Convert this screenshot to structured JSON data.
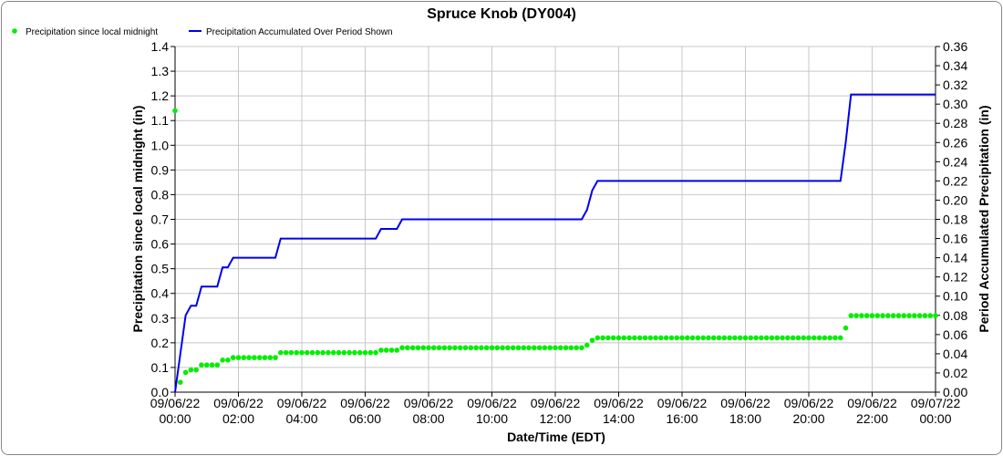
{
  "chart_data": {
    "type": "line",
    "title": "Spruce Knob (DY004)",
    "xlabel": "Date/Time (EDT)",
    "ylabel_left": "Precipitation since local midnight (in)",
    "ylabel_right": "Period Accumulated Precipitation (in)",
    "ylim_left": [
      0,
      1.4
    ],
    "yticks_left": [
      "0.0",
      "0.1",
      "0.2",
      "0.3",
      "0.4",
      "0.5",
      "0.6",
      "0.7",
      "0.8",
      "0.9",
      "1.0",
      "1.1",
      "1.2",
      "1.3",
      "1.4"
    ],
    "ylim_right": [
      0,
      0.36
    ],
    "yticks_right": [
      "0.00",
      "0.02",
      "0.04",
      "0.06",
      "0.08",
      "0.10",
      "0.12",
      "0.14",
      "0.16",
      "0.18",
      "0.20",
      "0.22",
      "0.24",
      "0.26",
      "0.28",
      "0.30",
      "0.32",
      "0.34",
      "0.36"
    ],
    "xlim_hours": [
      0,
      24
    ],
    "x_start": "09/06/22 00:00",
    "x_interval_minutes": 10,
    "xticks": [
      [
        "09/06/22",
        "00:00"
      ],
      [
        "09/06/22",
        "02:00"
      ],
      [
        "09/06/22",
        "04:00"
      ],
      [
        "09/06/22",
        "06:00"
      ],
      [
        "09/06/22",
        "08:00"
      ],
      [
        "09/06/22",
        "10:00"
      ],
      [
        "09/06/22",
        "12:00"
      ],
      [
        "09/06/22",
        "14:00"
      ],
      [
        "09/06/22",
        "16:00"
      ],
      [
        "09/06/22",
        "18:00"
      ],
      [
        "09/06/22",
        "20:00"
      ],
      [
        "09/06/22",
        "22:00"
      ],
      [
        "09/07/22",
        "00:00"
      ]
    ],
    "grid": true,
    "legend_placement": "top-left",
    "series": [
      {
        "name": "Precipitation since local midnight",
        "axis": "left",
        "style": "dots",
        "color": "#00ee00",
        "values": [
          1.14,
          0.04,
          0.08,
          0.09,
          0.09,
          0.11,
          0.11,
          0.11,
          0.11,
          0.13,
          0.13,
          0.14,
          0.14,
          0.14,
          0.14,
          0.14,
          0.14,
          0.14,
          0.14,
          0.14,
          0.16,
          0.16,
          0.16,
          0.16,
          0.16,
          0.16,
          0.16,
          0.16,
          0.16,
          0.16,
          0.16,
          0.16,
          0.16,
          0.16,
          0.16,
          0.16,
          0.16,
          0.16,
          0.16,
          0.17,
          0.17,
          0.17,
          0.17,
          0.18,
          0.18,
          0.18,
          0.18,
          0.18,
          0.18,
          0.18,
          0.18,
          0.18,
          0.18,
          0.18,
          0.18,
          0.18,
          0.18,
          0.18,
          0.18,
          0.18,
          0.18,
          0.18,
          0.18,
          0.18,
          0.18,
          0.18,
          0.18,
          0.18,
          0.18,
          0.18,
          0.18,
          0.18,
          0.18,
          0.18,
          0.18,
          0.18,
          0.18,
          0.18,
          0.19,
          0.21,
          0.22,
          0.22,
          0.22,
          0.22,
          0.22,
          0.22,
          0.22,
          0.22,
          0.22,
          0.22,
          0.22,
          0.22,
          0.22,
          0.22,
          0.22,
          0.22,
          0.22,
          0.22,
          0.22,
          0.22,
          0.22,
          0.22,
          0.22,
          0.22,
          0.22,
          0.22,
          0.22,
          0.22,
          0.22,
          0.22,
          0.22,
          0.22,
          0.22,
          0.22,
          0.22,
          0.22,
          0.22,
          0.22,
          0.22,
          0.22,
          0.22,
          0.22,
          0.22,
          0.22,
          0.22,
          0.22,
          0.22,
          0.26,
          0.31,
          0.31,
          0.31,
          0.31,
          0.31,
          0.31,
          0.31,
          0.31,
          0.31,
          0.31,
          0.31,
          0.31,
          0.31,
          0.31,
          0.31,
          0.31,
          0.31
        ]
      },
      {
        "name": "Precipitation Accumulated Over Period Shown",
        "axis": "right",
        "style": "line",
        "color": "#0000ee",
        "values": [
          0,
          0.04,
          0.08,
          0.09,
          0.09,
          0.11,
          0.11,
          0.11,
          0.11,
          0.13,
          0.13,
          0.14,
          0.14,
          0.14,
          0.14,
          0.14,
          0.14,
          0.14,
          0.14,
          0.14,
          0.16,
          0.16,
          0.16,
          0.16,
          0.16,
          0.16,
          0.16,
          0.16,
          0.16,
          0.16,
          0.16,
          0.16,
          0.16,
          0.16,
          0.16,
          0.16,
          0.16,
          0.16,
          0.16,
          0.17,
          0.17,
          0.17,
          0.17,
          0.18,
          0.18,
          0.18,
          0.18,
          0.18,
          0.18,
          0.18,
          0.18,
          0.18,
          0.18,
          0.18,
          0.18,
          0.18,
          0.18,
          0.18,
          0.18,
          0.18,
          0.18,
          0.18,
          0.18,
          0.18,
          0.18,
          0.18,
          0.18,
          0.18,
          0.18,
          0.18,
          0.18,
          0.18,
          0.18,
          0.18,
          0.18,
          0.18,
          0.18,
          0.18,
          0.19,
          0.21,
          0.22,
          0.22,
          0.22,
          0.22,
          0.22,
          0.22,
          0.22,
          0.22,
          0.22,
          0.22,
          0.22,
          0.22,
          0.22,
          0.22,
          0.22,
          0.22,
          0.22,
          0.22,
          0.22,
          0.22,
          0.22,
          0.22,
          0.22,
          0.22,
          0.22,
          0.22,
          0.22,
          0.22,
          0.22,
          0.22,
          0.22,
          0.22,
          0.22,
          0.22,
          0.22,
          0.22,
          0.22,
          0.22,
          0.22,
          0.22,
          0.22,
          0.22,
          0.22,
          0.22,
          0.22,
          0.22,
          0.22,
          0.26,
          0.31,
          0.31,
          0.31,
          0.31,
          0.31,
          0.31,
          0.31,
          0.31,
          0.31,
          0.31,
          0.31,
          0.31,
          0.31,
          0.31,
          0.31,
          0.31,
          0.31
        ]
      }
    ]
  }
}
